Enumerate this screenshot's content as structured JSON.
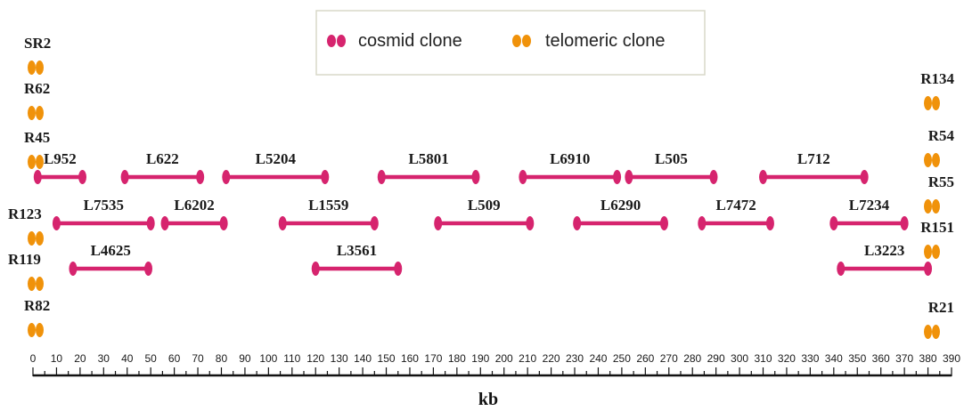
{
  "legend": {
    "cosmid_label": "cosmid clone",
    "telomeric_label": "telomeric clone"
  },
  "colors": {
    "cosmid": "#d6246e",
    "telomeric": "#f0920a"
  },
  "axis": {
    "title": "kb",
    "min": 0,
    "max": 390,
    "step": 10,
    "ticks": [
      "0",
      "10",
      "20",
      "30",
      "40",
      "50",
      "60",
      "70",
      "80",
      "90",
      "100",
      "110",
      "120",
      "130",
      "140",
      "150",
      "160",
      "170",
      "180",
      "190",
      "200",
      "210",
      "220",
      "230",
      "240",
      "250",
      "260",
      "270",
      "280",
      "290",
      "300",
      "310",
      "320",
      "330",
      "340",
      "350",
      "360",
      "370",
      "380",
      "390"
    ]
  },
  "cosmid_clones": [
    {
      "name": "L952",
      "start": 2,
      "end": 21,
      "row": 1
    },
    {
      "name": "L622",
      "start": 39,
      "end": 71,
      "row": 1
    },
    {
      "name": "L5204",
      "start": 82,
      "end": 124,
      "row": 1
    },
    {
      "name": "L5801",
      "start": 148,
      "end": 188,
      "row": 1
    },
    {
      "name": "L6910",
      "start": 208,
      "end": 248,
      "row": 1
    },
    {
      "name": "L505",
      "start": 253,
      "end": 289,
      "row": 1
    },
    {
      "name": "L712",
      "start": 310,
      "end": 353,
      "row": 1
    },
    {
      "name": "L7535",
      "start": 10,
      "end": 50,
      "row": 2
    },
    {
      "name": "L6202",
      "start": 56,
      "end": 81,
      "row": 2
    },
    {
      "name": "L1559",
      "start": 106,
      "end": 145,
      "row": 2
    },
    {
      "name": "L509",
      "start": 172,
      "end": 211,
      "row": 2
    },
    {
      "name": "L6290",
      "start": 231,
      "end": 268,
      "row": 2
    },
    {
      "name": "L7472",
      "start": 284,
      "end": 313,
      "row": 2
    },
    {
      "name": "L7234",
      "start": 340,
      "end": 370,
      "row": 2
    },
    {
      "name": "L4625",
      "start": 17,
      "end": 49,
      "row": 3
    },
    {
      "name": "L3561",
      "start": 120,
      "end": 155,
      "row": 3
    },
    {
      "name": "L3223",
      "start": 343,
      "end": 380,
      "row": 3
    }
  ],
  "telomeric_left": [
    "SR2",
    "R62",
    "R45",
    "R123",
    "R119",
    "R82"
  ],
  "telomeric_right": [
    "R134",
    "R54",
    "R55",
    "R151",
    "R21"
  ]
}
